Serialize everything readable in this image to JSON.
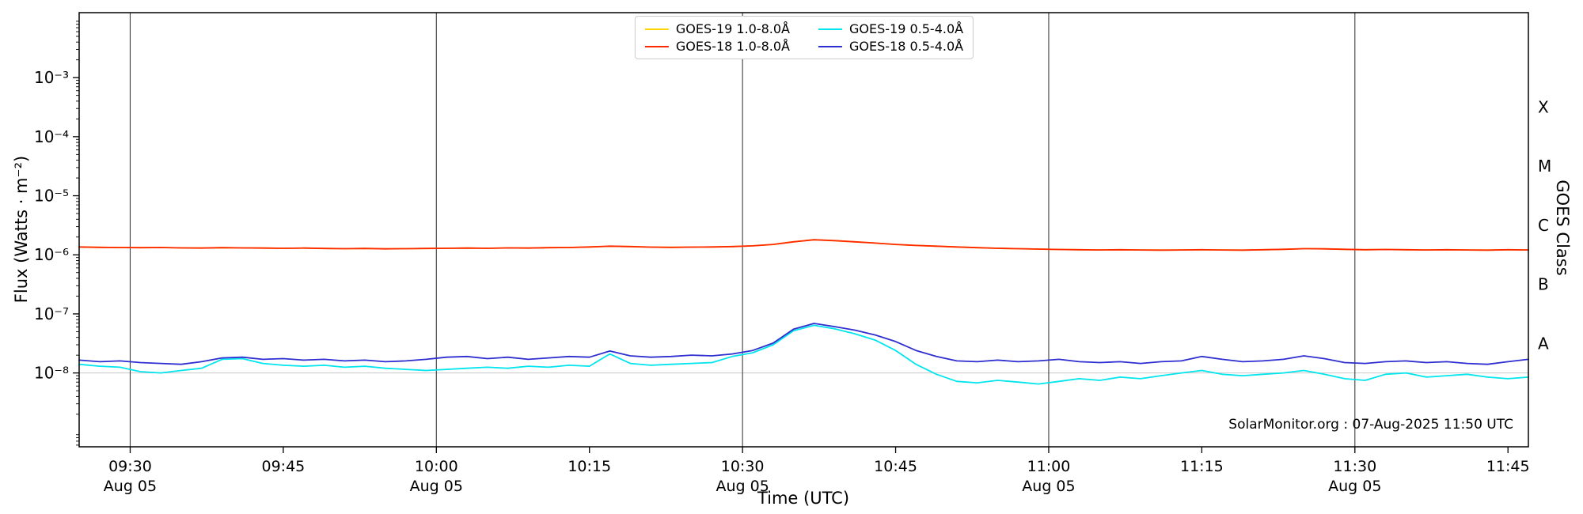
{
  "figure": {
    "xlabel": "Time (UTC)",
    "ylabel": "Flux (Watts · m⁻²)",
    "ylabel_right": "GOES Class",
    "watermark": "SolarMonitor.org : 07-Aug-2025 11:50 UTC"
  },
  "chart_data": {
    "type": "line",
    "title": "",
    "xlabel": "Time (UTC)",
    "ylabel": "Flux (Watts · m⁻²)",
    "ylabel_right": "GOES Class",
    "y_scale": "log",
    "y_range_log10": [
      -9.25,
      -1.9
    ],
    "x_unit": "minutes after 00:00 UTC, Aug 05",
    "x_range_minutes": [
      565,
      707
    ],
    "x_ticks": [
      {
        "minute": 570,
        "label": "09:30",
        "date": "Aug 05"
      },
      {
        "minute": 585,
        "label": "09:45"
      },
      {
        "minute": 600,
        "label": "10:00",
        "date": "Aug 05"
      },
      {
        "minute": 615,
        "label": "10:15"
      },
      {
        "minute": 630,
        "label": "10:30",
        "date": "Aug 05"
      },
      {
        "minute": 645,
        "label": "10:45"
      },
      {
        "minute": 660,
        "label": "11:00",
        "date": "Aug 05"
      },
      {
        "minute": 675,
        "label": "11:15"
      },
      {
        "minute": 690,
        "label": "11:30",
        "date": "Aug 05"
      },
      {
        "minute": 705,
        "label": "11:45"
      }
    ],
    "y_ticks": [
      {
        "value": 0.001,
        "label": "10⁻³"
      },
      {
        "value": 0.0001,
        "label": "10⁻⁴"
      },
      {
        "value": 1e-05,
        "label": "10⁻⁵"
      },
      {
        "value": 1e-06,
        "label": "10⁻⁶"
      },
      {
        "value": 1e-07,
        "label": "10⁻⁷"
      },
      {
        "value": 1e-08,
        "label": "10⁻⁸"
      }
    ],
    "goes_classes": [
      {
        "label": "X",
        "log10_mid": -3.5
      },
      {
        "label": "M",
        "log10_mid": -4.5
      },
      {
        "label": "C",
        "log10_mid": -5.5
      },
      {
        "label": "B",
        "log10_mid": -6.5
      },
      {
        "label": "A",
        "log10_mid": -7.5
      }
    ],
    "vertical_gridlines_minutes": [
      570,
      600,
      630,
      660,
      690
    ],
    "horizontal_gridline_value": 1e-08,
    "legend_position": "top-center",
    "legend": [
      {
        "id": "goes19-long",
        "label": "GOES-19 1.0-8.0Å",
        "color": "#ffd600"
      },
      {
        "id": "goes18-long",
        "label": "GOES-18 1.0-8.0Å",
        "color": "#ff2800"
      },
      {
        "id": "goes19-short",
        "label": "GOES-19 0.5-4.0Å",
        "color": "#00e5ee"
      },
      {
        "id": "goes18-short",
        "label": "GOES-18 0.5-4.0Å",
        "color": "#2e2ed1"
      }
    ],
    "x_minutes": [
      565,
      567,
      569,
      571,
      573,
      575,
      577,
      579,
      581,
      583,
      585,
      587,
      589,
      591,
      593,
      595,
      597,
      599,
      601,
      603,
      605,
      607,
      609,
      611,
      613,
      615,
      617,
      619,
      621,
      623,
      625,
      627,
      629,
      631,
      633,
      635,
      637,
      639,
      641,
      643,
      645,
      647,
      649,
      651,
      653,
      655,
      657,
      659,
      661,
      663,
      665,
      667,
      669,
      671,
      673,
      675,
      677,
      679,
      681,
      683,
      685,
      687,
      689,
      691,
      693,
      695,
      697,
      699,
      701,
      703,
      705,
      707
    ],
    "series": [
      {
        "id": "goes19-long",
        "name": "GOES-19 1.0-8.0Å",
        "color": "#ffd600",
        "y": [
          1.36e-06,
          1.34e-06,
          1.33e-06,
          1.32e-06,
          1.33e-06,
          1.31e-06,
          1.3e-06,
          1.32e-06,
          1.31e-06,
          1.3e-06,
          1.29e-06,
          1.3e-06,
          1.28e-06,
          1.27e-06,
          1.28e-06,
          1.26e-06,
          1.27e-06,
          1.28e-06,
          1.29e-06,
          1.3e-06,
          1.29e-06,
          1.31e-06,
          1.3e-06,
          1.32e-06,
          1.33e-06,
          1.36e-06,
          1.4e-06,
          1.38e-06,
          1.35e-06,
          1.34e-06,
          1.35e-06,
          1.36e-06,
          1.38e-06,
          1.42e-06,
          1.5e-06,
          1.66e-06,
          1.8e-06,
          1.74e-06,
          1.66e-06,
          1.58e-06,
          1.5e-06,
          1.44e-06,
          1.4e-06,
          1.36e-06,
          1.32e-06,
          1.29e-06,
          1.27e-06,
          1.25e-06,
          1.23e-06,
          1.22e-06,
          1.21e-06,
          1.22e-06,
          1.21e-06,
          1.2e-06,
          1.21e-06,
          1.22e-06,
          1.21e-06,
          1.2e-06,
          1.22e-06,
          1.24e-06,
          1.27e-06,
          1.26e-06,
          1.24e-06,
          1.22e-06,
          1.23e-06,
          1.22e-06,
          1.21e-06,
          1.22e-06,
          1.21e-06,
          1.2e-06,
          1.22e-06,
          1.21e-06
        ]
      },
      {
        "id": "goes18-long",
        "name": "GOES-18 1.0-8.0Å",
        "color": "#ff2800",
        "y": [
          1.36e-06,
          1.34e-06,
          1.33e-06,
          1.32e-06,
          1.33e-06,
          1.31e-06,
          1.3e-06,
          1.32e-06,
          1.31e-06,
          1.3e-06,
          1.29e-06,
          1.3e-06,
          1.28e-06,
          1.27e-06,
          1.28e-06,
          1.26e-06,
          1.27e-06,
          1.28e-06,
          1.29e-06,
          1.3e-06,
          1.29e-06,
          1.31e-06,
          1.3e-06,
          1.32e-06,
          1.33e-06,
          1.36e-06,
          1.4e-06,
          1.38e-06,
          1.35e-06,
          1.34e-06,
          1.35e-06,
          1.36e-06,
          1.38e-06,
          1.42e-06,
          1.5e-06,
          1.66e-06,
          1.8e-06,
          1.74e-06,
          1.66e-06,
          1.58e-06,
          1.5e-06,
          1.44e-06,
          1.4e-06,
          1.36e-06,
          1.32e-06,
          1.29e-06,
          1.27e-06,
          1.25e-06,
          1.23e-06,
          1.22e-06,
          1.21e-06,
          1.22e-06,
          1.21e-06,
          1.2e-06,
          1.21e-06,
          1.22e-06,
          1.21e-06,
          1.2e-06,
          1.22e-06,
          1.24e-06,
          1.27e-06,
          1.26e-06,
          1.24e-06,
          1.22e-06,
          1.23e-06,
          1.22e-06,
          1.21e-06,
          1.22e-06,
          1.21e-06,
          1.2e-06,
          1.22e-06,
          1.21e-06
        ]
      },
      {
        "id": "goes19-short",
        "name": "GOES-19 0.5-4.0Å",
        "color": "#00e5ee",
        "y": [
          1.4e-08,
          1.3e-08,
          1.25e-08,
          1.05e-08,
          1e-08,
          1.1e-08,
          1.2e-08,
          1.7e-08,
          1.75e-08,
          1.45e-08,
          1.35e-08,
          1.3e-08,
          1.35e-08,
          1.25e-08,
          1.3e-08,
          1.2e-08,
          1.15e-08,
          1.1e-08,
          1.15e-08,
          1.2e-08,
          1.25e-08,
          1.2e-08,
          1.3e-08,
          1.25e-08,
          1.35e-08,
          1.3e-08,
          2.1e-08,
          1.45e-08,
          1.35e-08,
          1.4e-08,
          1.45e-08,
          1.5e-08,
          1.9e-08,
          2.2e-08,
          3e-08,
          5.2e-08,
          6.4e-08,
          5.6e-08,
          4.6e-08,
          3.6e-08,
          2.4e-08,
          1.4e-08,
          9.5e-09,
          7.2e-09,
          6.8e-09,
          7.5e-09,
          7e-09,
          6.5e-09,
          7.2e-09,
          8e-09,
          7.5e-09,
          8.5e-09,
          8e-09,
          9e-09,
          1e-08,
          1.1e-08,
          9.5e-09,
          9e-09,
          9.5e-09,
          1e-08,
          1.1e-08,
          9.5e-09,
          8e-09,
          7.5e-09,
          9.5e-09,
          1e-08,
          8.5e-09,
          9e-09,
          9.5e-09,
          8.5e-09,
          8e-09,
          8.5e-09
        ]
      },
      {
        "id": "goes18-short",
        "name": "GOES-18 0.5-4.0Å",
        "color": "#2e2ed1",
        "y": [
          1.65e-08,
          1.55e-08,
          1.6e-08,
          1.5e-08,
          1.45e-08,
          1.4e-08,
          1.55e-08,
          1.8e-08,
          1.85e-08,
          1.7e-08,
          1.75e-08,
          1.65e-08,
          1.7e-08,
          1.6e-08,
          1.65e-08,
          1.55e-08,
          1.6e-08,
          1.7e-08,
          1.85e-08,
          1.9e-08,
          1.75e-08,
          1.85e-08,
          1.7e-08,
          1.8e-08,
          1.9e-08,
          1.85e-08,
          2.35e-08,
          1.95e-08,
          1.85e-08,
          1.9e-08,
          2e-08,
          1.95e-08,
          2.1e-08,
          2.4e-08,
          3.2e-08,
          5.5e-08,
          6.9e-08,
          6.1e-08,
          5.3e-08,
          4.4e-08,
          3.4e-08,
          2.4e-08,
          1.9e-08,
          1.6e-08,
          1.55e-08,
          1.65e-08,
          1.55e-08,
          1.6e-08,
          1.7e-08,
          1.55e-08,
          1.5e-08,
          1.55e-08,
          1.45e-08,
          1.55e-08,
          1.6e-08,
          1.9e-08,
          1.7e-08,
          1.55e-08,
          1.6e-08,
          1.7e-08,
          1.95e-08,
          1.75e-08,
          1.5e-08,
          1.45e-08,
          1.55e-08,
          1.6e-08,
          1.5e-08,
          1.55e-08,
          1.45e-08,
          1.4e-08,
          1.55e-08,
          1.7e-08
        ]
      }
    ]
  }
}
